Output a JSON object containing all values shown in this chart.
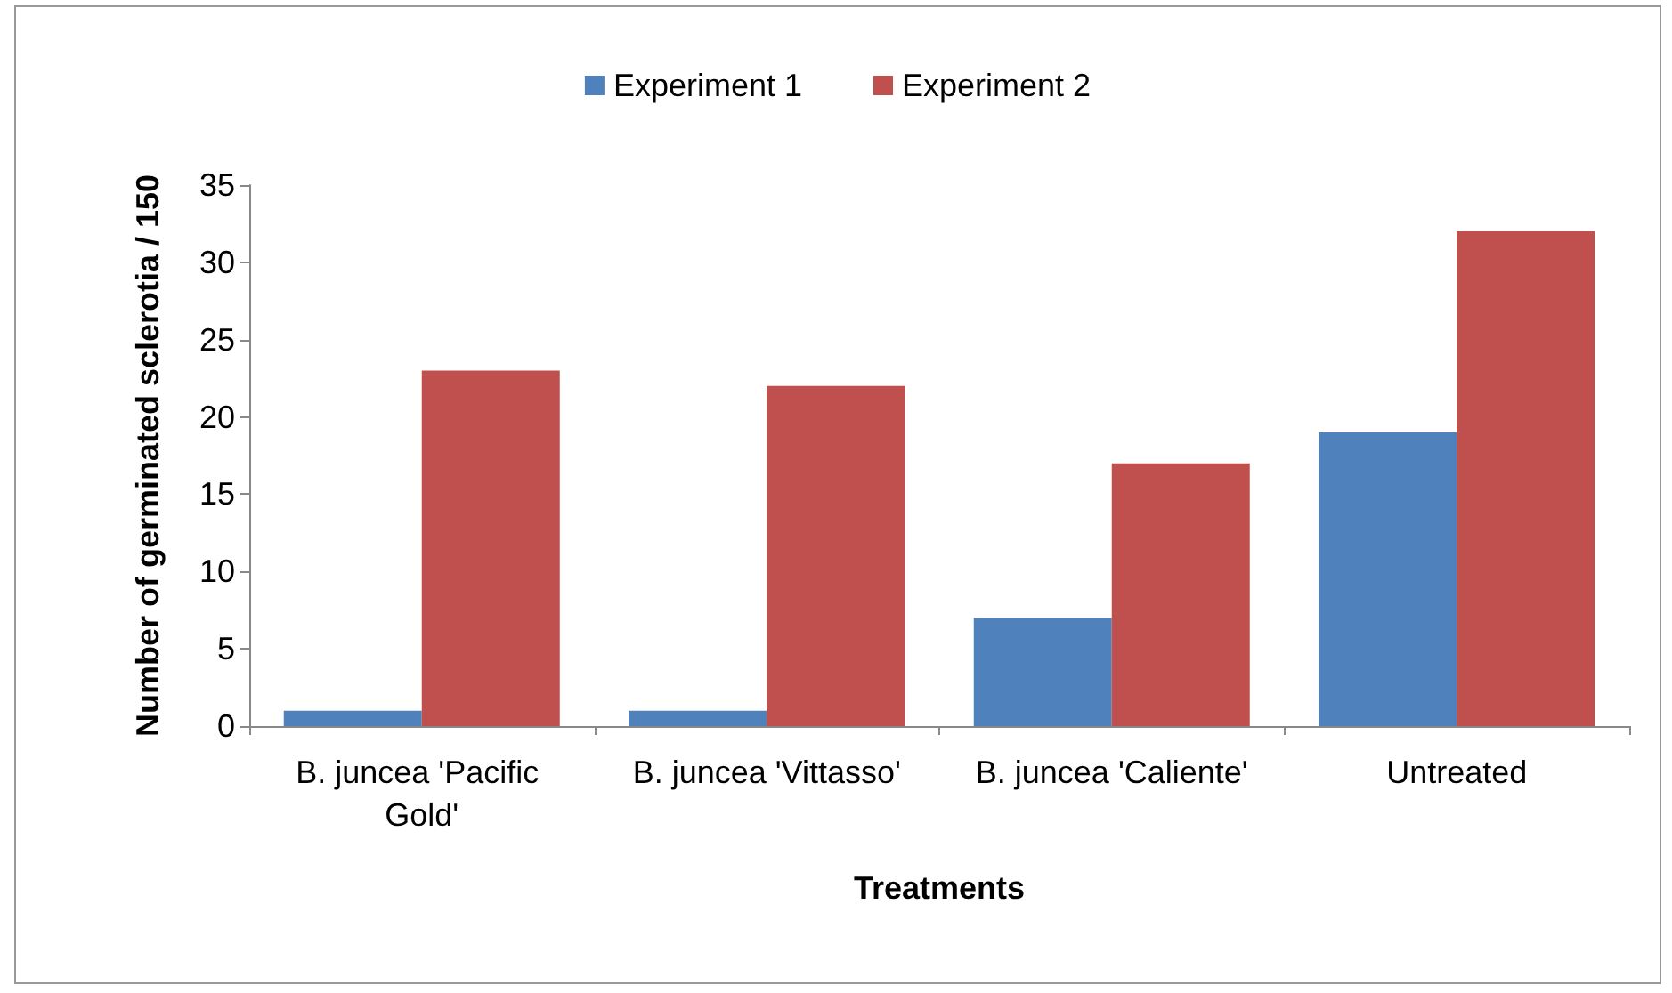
{
  "chart_data": {
    "type": "bar",
    "xlabel": "Treatments",
    "ylabel": "Number of germinated sclerotia / 150",
    "categories": [
      "B. juncea 'Pacific Gold'",
      "B. juncea 'Vittasso'",
      "B. juncea 'Caliente'",
      "Untreated"
    ],
    "series": [
      {
        "name": "Experiment 1",
        "color": "#4f81bd",
        "values": [
          1,
          1,
          7,
          19
        ]
      },
      {
        "name": "Experiment 2",
        "color": "#c0504d",
        "values": [
          23,
          22,
          17,
          32
        ]
      }
    ],
    "ylim": [
      0,
      35
    ],
    "yticks": [
      0,
      5,
      10,
      15,
      20,
      25,
      30,
      35
    ],
    "grid": false,
    "legend": "top"
  }
}
